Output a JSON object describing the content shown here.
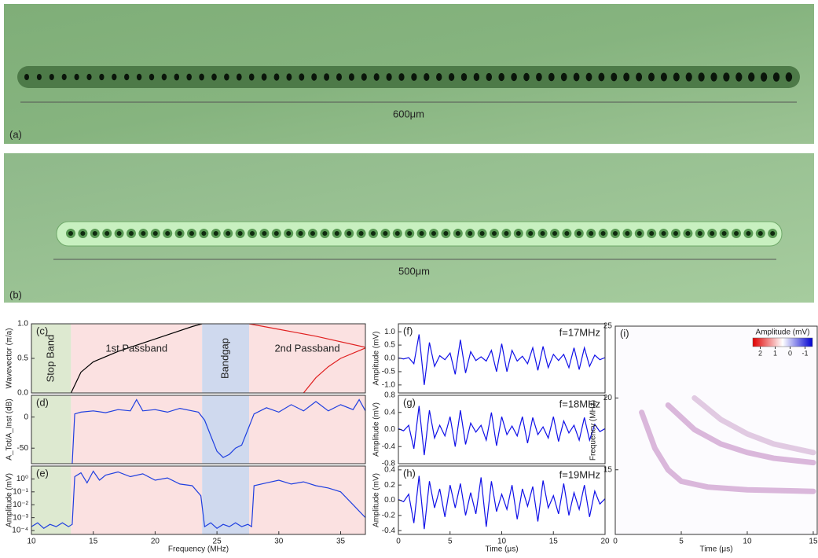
{
  "images": [
    {
      "label": "(a)",
      "scale": "600μm"
    },
    {
      "label": "(b)",
      "scale": "500μm"
    }
  ],
  "chart_data": [
    {
      "type": "line",
      "label": "(c)",
      "ylabel": "Wavevector (π/a)",
      "xlim": [
        10,
        37
      ],
      "ylim": [
        0,
        1
      ],
      "yticks": [
        {
          "value": 0,
          "label": "0.0"
        },
        {
          "value": 0.5,
          "label": "0.5"
        },
        {
          "value": 1,
          "label": "1.0"
        }
      ],
      "bands": [
        {
          "label": "Stop Band",
          "from": 10,
          "to": 13.2,
          "color": "#dde9d0"
        },
        {
          "label": "1st Passband",
          "from": 13.2,
          "to": 23.8,
          "color": "#fbe1e1"
        },
        {
          "label": "Bandgap",
          "from": 23.8,
          "to": 27.6,
          "color": "#cfd9ee"
        },
        {
          "label": "2nd Passband",
          "from": 27.6,
          "to": 37,
          "color": "#fbe1e1"
        }
      ],
      "series": [
        {
          "color": "#000000",
          "x": [
            13.2,
            14,
            15,
            17,
            19,
            21,
            23,
            23.8
          ],
          "values": [
            0,
            0.3,
            0.45,
            0.6,
            0.72,
            0.84,
            0.96,
            1.0
          ]
        },
        {
          "color": "#e02020",
          "x": [
            27.6,
            30,
            33,
            37
          ],
          "values": [
            1.0,
            0.92,
            0.82,
            0.66
          ]
        },
        {
          "color": "#e02020",
          "x": [
            32,
            33,
            34,
            35,
            37
          ],
          "values": [
            0,
            0.22,
            0.38,
            0.5,
            0.65
          ]
        }
      ]
    },
    {
      "type": "line",
      "label": "(d)",
      "ylabel": "A_Tot/A_Inst (dB)",
      "xlim": [
        10,
        37
      ],
      "ylim": [
        -75,
        35
      ],
      "yticks": [
        0,
        -50
      ],
      "series": [
        {
          "color": "#1f3fe0",
          "x": [
            13.3,
            13.5,
            14,
            15,
            16,
            17,
            18,
            18.5,
            19,
            20,
            21,
            22,
            23,
            23.5,
            24,
            24.5,
            25,
            25.5,
            26,
            26.5,
            27,
            27.5,
            28,
            29,
            30,
            31,
            32,
            33,
            34,
            35,
            36,
            36.5,
            37
          ],
          "values": [
            -75,
            5,
            8,
            10,
            7,
            12,
            10,
            28,
            10,
            12,
            8,
            14,
            10,
            8,
            -5,
            -30,
            -55,
            -65,
            -60,
            -50,
            -45,
            -20,
            5,
            15,
            8,
            20,
            10,
            25,
            10,
            20,
            12,
            28,
            10
          ]
        }
      ]
    },
    {
      "type": "line",
      "label": "(e)",
      "ylabel": "Amplitude (mV)",
      "xlabel": "Frequency (MHz)",
      "log_y": true,
      "xlim": [
        10,
        37
      ],
      "ylim": [
        5e-05,
        10
      ],
      "xticks": [
        10,
        15,
        20,
        25,
        30,
        35
      ],
      "yticks": [
        {
          "value": 0.0001,
          "label": "10⁻⁴"
        },
        {
          "value": 0.001,
          "label": "10⁻³"
        },
        {
          "value": 0.01,
          "label": "10⁻²"
        },
        {
          "value": 0.1,
          "label": "10⁻¹"
        },
        {
          "value": 1,
          "label": "10⁰"
        }
      ],
      "series": [
        {
          "color": "#1f3fe0",
          "x": [
            10,
            10.5,
            11,
            11.5,
            12,
            12.5,
            13,
            13.3,
            13.5,
            14,
            14.5,
            15,
            15.5,
            16,
            17,
            18,
            19,
            20,
            21,
            22,
            23,
            23.7,
            24,
            24.5,
            25,
            25.5,
            26,
            26.5,
            27,
            27.5,
            27.8,
            28,
            29,
            30,
            31,
            32,
            33,
            34,
            35,
            36,
            37
          ],
          "values": [
            0.0002,
            0.0004,
            0.00015,
            0.0003,
            0.0002,
            0.0004,
            0.0002,
            0.0003,
            1.5,
            3,
            0.5,
            4,
            0.8,
            2,
            3.5,
            1.5,
            2.5,
            0.8,
            1.2,
            0.4,
            0.3,
            0.05,
            0.0002,
            0.0004,
            0.00015,
            0.0003,
            0.0002,
            0.0004,
            0.0002,
            0.0003,
            0.0002,
            0.3,
            0.5,
            0.8,
            0.4,
            0.6,
            0.3,
            0.2,
            0.1,
            0.01,
            0.001
          ]
        }
      ]
    },
    {
      "type": "line",
      "label": "(f)",
      "annotation": "f=17MHz",
      "ylabel": "Amplitude (mV)",
      "xlim": [
        0,
        20
      ],
      "ylim": [
        -1.3,
        1.3
      ],
      "yticks": [
        {
          "value": -1,
          "label": "-1.0"
        },
        {
          "value": -0.5,
          "label": "-0.5"
        },
        {
          "value": 0,
          "label": "0.0"
        },
        {
          "value": 0.5,
          "label": "0.5"
        },
        {
          "value": 1,
          "label": "1.0"
        }
      ],
      "series": [
        {
          "color": "#1010e8",
          "x": [
            0,
            0.5,
            1,
            1.5,
            2,
            2.5,
            3,
            3.5,
            4,
            4.5,
            5,
            5.5,
            6,
            6.5,
            7,
            7.5,
            8,
            8.5,
            9,
            9.5,
            10,
            10.5,
            11,
            11.5,
            12,
            12.5,
            13,
            13.5,
            14,
            14.5,
            15,
            15.5,
            16,
            16.5,
            17,
            17.5,
            18,
            18.5,
            19,
            19.5,
            20
          ],
          "values": [
            0.02,
            -0.02,
            0.03,
            -0.2,
            0.9,
            -1.0,
            0.6,
            -0.3,
            0.1,
            -0.05,
            0.2,
            -0.6,
            0.7,
            -0.55,
            0.25,
            -0.08,
            0.06,
            -0.1,
            0.3,
            -0.5,
            0.55,
            -0.5,
            0.3,
            -0.1,
            0.08,
            -0.2,
            0.4,
            -0.45,
            0.45,
            -0.35,
            0.15,
            -0.08,
            0.15,
            -0.35,
            0.4,
            -0.42,
            0.4,
            -0.3,
            0.12,
            -0.05,
            0.03
          ]
        }
      ]
    },
    {
      "type": "line",
      "label": "(g)",
      "annotation": "f=18MHz",
      "ylabel": "Amplitude (mV)",
      "xlim": [
        0,
        20
      ],
      "ylim": [
        -0.8,
        0.8
      ],
      "yticks": [
        {
          "value": -0.8,
          "label": "-0.8"
        },
        {
          "value": -0.4,
          "label": "-0.4"
        },
        {
          "value": 0,
          "label": "0.0"
        },
        {
          "value": 0.4,
          "label": "0.4"
        },
        {
          "value": 0.8,
          "label": "0.8"
        }
      ],
      "series": [
        {
          "color": "#1010e8",
          "x": [
            0,
            0.5,
            1,
            1.5,
            2,
            2.5,
            3,
            3.5,
            4,
            4.5,
            5,
            5.5,
            6,
            6.5,
            7,
            7.5,
            8,
            8.5,
            9,
            9.5,
            10,
            10.5,
            11,
            11.5,
            12,
            12.5,
            13,
            13.5,
            14,
            14.5,
            15,
            15.5,
            16,
            16.5,
            17,
            17.5,
            18,
            18.5,
            19,
            19.5,
            20
          ],
          "values": [
            0.02,
            -0.03,
            0.1,
            -0.45,
            0.55,
            -0.6,
            0.45,
            -0.2,
            0.1,
            -0.15,
            0.3,
            -0.4,
            0.45,
            -0.35,
            0.15,
            -0.06,
            0.1,
            -0.25,
            0.4,
            -0.38,
            0.3,
            -0.12,
            0.08,
            -0.15,
            0.3,
            -0.32,
            0.28,
            -0.12,
            0.06,
            -0.2,
            0.3,
            -0.28,
            0.2,
            -0.08,
            0.1,
            -0.25,
            0.28,
            -0.25,
            0.12,
            -0.05,
            0.02
          ]
        }
      ]
    },
    {
      "type": "line",
      "label": "(h)",
      "annotation": "f=19MHz",
      "ylabel": "Amplitude (mV)",
      "xlabel": "Time (μs)",
      "xlim": [
        0,
        20
      ],
      "ylim": [
        -0.45,
        0.45
      ],
      "xticks": [
        0,
        5,
        10,
        15,
        20
      ],
      "yticks": [
        {
          "value": -0.4,
          "label": "-0.4"
        },
        {
          "value": -0.2,
          "label": "-0.2"
        },
        {
          "value": 0,
          "label": "0.0"
        },
        {
          "value": 0.2,
          "label": "0.2"
        },
        {
          "value": 0.4,
          "label": "0.4"
        }
      ],
      "series": [
        {
          "color": "#1010e8",
          "x": [
            0,
            0.5,
            1,
            1.5,
            2,
            2.5,
            3,
            3.5,
            4,
            4.5,
            5,
            5.5,
            6,
            6.5,
            7,
            7.5,
            8,
            8.5,
            9,
            9.5,
            10,
            10.5,
            11,
            11.5,
            12,
            12.5,
            13,
            13.5,
            14,
            14.5,
            15,
            15.5,
            16,
            16.5,
            17,
            17.5,
            18,
            18.5,
            19,
            19.5,
            20
          ],
          "values": [
            0.01,
            -0.02,
            0.08,
            -0.3,
            0.32,
            -0.38,
            0.25,
            -0.1,
            0.15,
            -0.22,
            0.2,
            -0.1,
            0.22,
            -0.2,
            0.1,
            -0.18,
            0.3,
            -0.35,
            0.25,
            -0.15,
            0.08,
            -0.12,
            0.2,
            -0.25,
            0.15,
            -0.08,
            0.18,
            -0.28,
            0.26,
            -0.1,
            0.06,
            -0.18,
            0.22,
            -0.2,
            0.1,
            -0.12,
            0.2,
            -0.22,
            0.12,
            -0.05,
            0.02
          ]
        }
      ]
    },
    {
      "type": "spectrogram",
      "label": "(i)",
      "ylabel": "Frequency (MHz)",
      "xlabel": "Time (μs)",
      "xlim": [
        0,
        15.3
      ],
      "ylim": [
        10.5,
        25
      ],
      "xticks": [
        0,
        5,
        10,
        15
      ],
      "yticks": [
        15,
        20,
        25
      ],
      "colorbar": {
        "title": "Amplitude (mV)",
        "lim": [
          2.5,
          -1.5
        ],
        "ticks": [
          2,
          1,
          0,
          -1
        ]
      },
      "series": [
        {
          "color": "#9a3a9a",
          "x": [
            2,
            3,
            4,
            5,
            7,
            10,
            15
          ],
          "values": [
            19,
            16.5,
            15,
            14.2,
            13.8,
            13.6,
            13.5
          ]
        },
        {
          "color": "#9a3a9a",
          "x": [
            4,
            6,
            8,
            10,
            12,
            15
          ],
          "values": [
            19.5,
            17.8,
            16.8,
            16.2,
            15.8,
            15.5
          ]
        },
        {
          "color": "#b070b0",
          "x": [
            6,
            8,
            10,
            12,
            15
          ],
          "values": [
            20,
            18.5,
            17.5,
            16.8,
            16.2
          ]
        }
      ]
    }
  ]
}
